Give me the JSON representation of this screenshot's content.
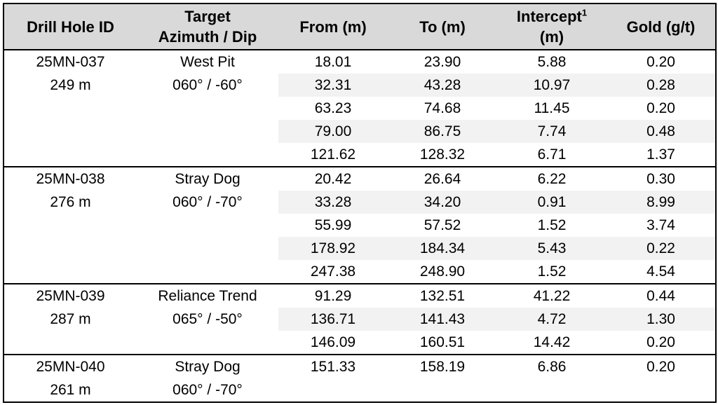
{
  "colors": {
    "header_bg": "#d9d9d9",
    "stripe_bg": "#f2f2f2",
    "border": "#000000",
    "text": "#000000",
    "page_bg": "#ffffff"
  },
  "table": {
    "columns": [
      {
        "label": "Drill Hole ID"
      },
      {
        "label": "Target",
        "label2": "Azimuth / Dip"
      },
      {
        "label": "From (m)"
      },
      {
        "label": "To (m)"
      },
      {
        "label": "Intercept",
        "sup": "1",
        "label2": "(m)"
      },
      {
        "label": "Gold (g/t)"
      }
    ],
    "groups": [
      {
        "hole_id": "25MN-037",
        "hole_depth": "249 m",
        "target": "West Pit",
        "azimuth_dip": "060° / -60°",
        "intercepts": [
          {
            "from": "18.01",
            "to": "23.90",
            "intercept": "5.88",
            "gold": "0.20"
          },
          {
            "from": "32.31",
            "to": "43.28",
            "intercept": "10.97",
            "gold": "0.28"
          },
          {
            "from": "63.23",
            "to": "74.68",
            "intercept": "11.45",
            "gold": "0.20"
          },
          {
            "from": "79.00",
            "to": "86.75",
            "intercept": "7.74",
            "gold": "0.48"
          },
          {
            "from": "121.62",
            "to": "128.32",
            "intercept": "6.71",
            "gold": "1.37"
          }
        ]
      },
      {
        "hole_id": "25MN-038",
        "hole_depth": "276 m",
        "target": "Stray Dog",
        "azimuth_dip": "060° / -70°",
        "intercepts": [
          {
            "from": "20.42",
            "to": "26.64",
            "intercept": "6.22",
            "gold": "0.30"
          },
          {
            "from": "33.28",
            "to": "34.20",
            "intercept": "0.91",
            "gold": "8.99"
          },
          {
            "from": "55.99",
            "to": "57.52",
            "intercept": "1.52",
            "gold": "3.74"
          },
          {
            "from": "178.92",
            "to": "184.34",
            "intercept": "5.43",
            "gold": "0.22"
          },
          {
            "from": "247.38",
            "to": "248.90",
            "intercept": "1.52",
            "gold": "4.54"
          }
        ]
      },
      {
        "hole_id": "25MN-039",
        "hole_depth": "287 m",
        "target": "Reliance Trend",
        "azimuth_dip": "065° / -50°",
        "intercepts": [
          {
            "from": "91.29",
            "to": "132.51",
            "intercept": "41.22",
            "gold": "0.44"
          },
          {
            "from": "136.71",
            "to": "141.43",
            "intercept": "4.72",
            "gold": "1.30"
          },
          {
            "from": "146.09",
            "to": "160.51",
            "intercept": "14.42",
            "gold": "0.20"
          }
        ]
      },
      {
        "hole_id": "25MN-040",
        "hole_depth": "261 m",
        "target": "Stray Dog",
        "azimuth_dip": "060° / -70°",
        "intercepts": [
          {
            "from": "151.33",
            "to": "158.19",
            "intercept": "6.86",
            "gold": "0.20"
          }
        ]
      }
    ]
  }
}
